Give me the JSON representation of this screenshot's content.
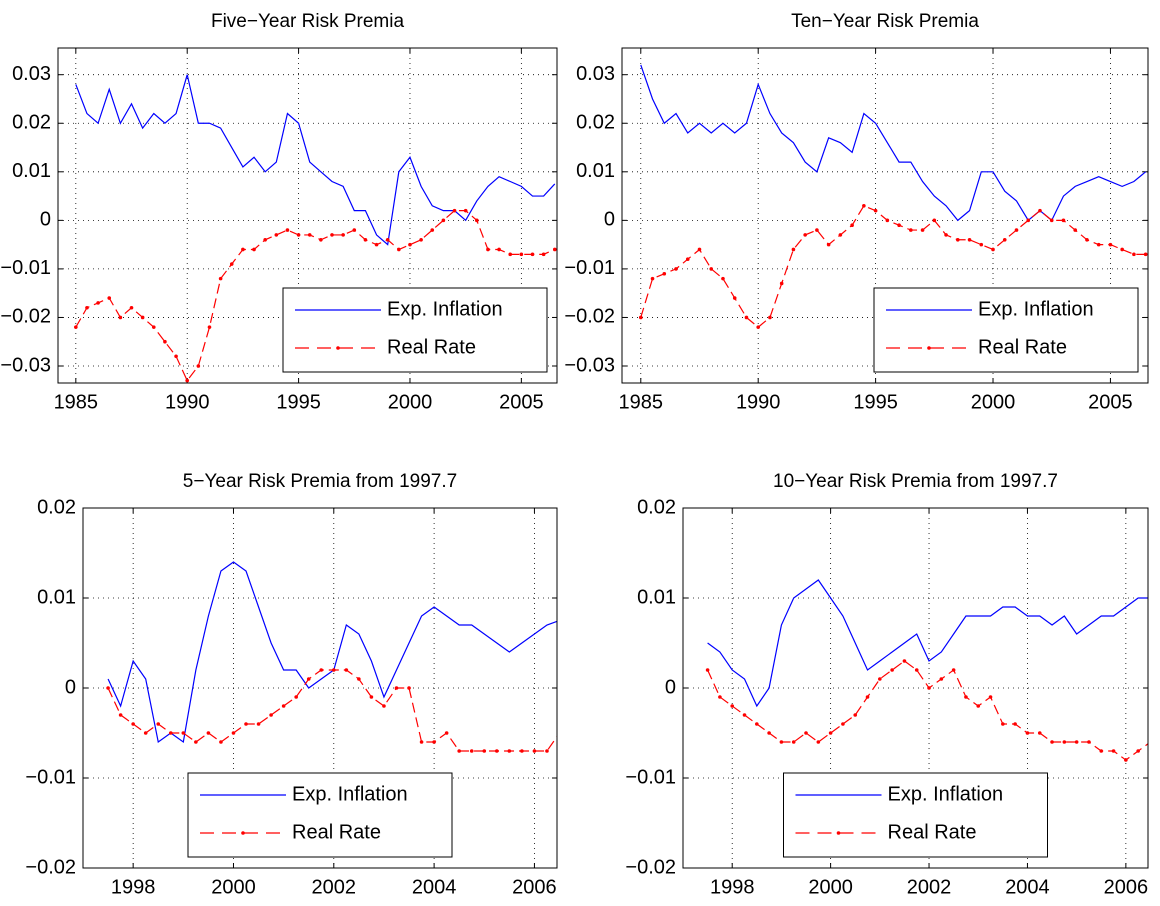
{
  "chart_data": [
    {
      "type": "line",
      "title": "Five−Year Risk Premia",
      "x": [
        1985,
        1985.5,
        1986,
        1986.5,
        1987,
        1987.5,
        1988,
        1988.5,
        1989,
        1989.5,
        1990,
        1990.5,
        1991,
        1991.5,
        1992,
        1992.5,
        1993,
        1993.5,
        1994,
        1994.5,
        1995,
        1995.5,
        1996,
        1996.5,
        1997,
        1997.5,
        1998,
        1998.5,
        1999,
        1999.5,
        2000,
        2000.5,
        2001,
        2001.5,
        2002,
        2002.5,
        2003,
        2003.5,
        2004,
        2004.5,
        2005,
        2005.5,
        2006,
        2006.5
      ],
      "series": [
        {
          "name": "Exp. Inflation",
          "color": "#0000ff",
          "linestyle": "solid",
          "marker": "none",
          "values": [
            0.028,
            0.022,
            0.02,
            0.027,
            0.02,
            0.024,
            0.019,
            0.022,
            0.02,
            0.022,
            0.03,
            0.02,
            0.02,
            0.019,
            0.015,
            0.011,
            0.013,
            0.01,
            0.012,
            0.022,
            0.02,
            0.012,
            0.01,
            0.008,
            0.007,
            0.002,
            0.002,
            -0.003,
            -0.005,
            0.01,
            0.013,
            0.007,
            0.003,
            0.002,
            0.002,
            0.0,
            0.004,
            0.007,
            0.009,
            0.008,
            0.007,
            0.005,
            0.005,
            0.0075
          ]
        },
        {
          "name": "Real Rate",
          "color": "#ff0000",
          "linestyle": "dashed",
          "marker": "dot",
          "values": [
            -0.022,
            -0.018,
            -0.017,
            -0.016,
            -0.02,
            -0.018,
            -0.02,
            -0.022,
            -0.025,
            -0.028,
            -0.033,
            -0.03,
            -0.022,
            -0.012,
            -0.009,
            -0.006,
            -0.006,
            -0.004,
            -0.003,
            -0.002,
            -0.003,
            -0.003,
            -0.004,
            -0.003,
            -0.003,
            -0.002,
            -0.004,
            -0.005,
            -0.004,
            -0.006,
            -0.005,
            -0.004,
            -0.002,
            0.0,
            0.002,
            0.002,
            0.0,
            -0.006,
            -0.006,
            -0.007,
            -0.007,
            -0.007,
            -0.007,
            -0.006
          ]
        }
      ],
      "xlim": [
        1984.2,
        2006.6
      ],
      "ylim": [
        -0.0335,
        0.0355
      ],
      "xticks": [
        1985,
        1990,
        1995,
        2000,
        2005
      ],
      "yticks": [
        {
          "value": -0.03,
          "label": "−0.03"
        },
        {
          "value": -0.02,
          "label": "−0.02"
        },
        {
          "value": -0.01,
          "label": "−0.01"
        },
        0,
        0.01,
        0.02,
        0.03
      ],
      "grid": true,
      "legend": "lower right"
    },
    {
      "type": "line",
      "title": "Ten−Year Risk Premia",
      "x": [
        1985,
        1985.5,
        1986,
        1986.5,
        1987,
        1987.5,
        1988,
        1988.5,
        1989,
        1989.5,
        1990,
        1990.5,
        1991,
        1991.5,
        1992,
        1992.5,
        1993,
        1993.5,
        1994,
        1994.5,
        1995,
        1995.5,
        1996,
        1996.5,
        1997,
        1997.5,
        1998,
        1998.5,
        1999,
        1999.5,
        2000,
        2000.5,
        2001,
        2001.5,
        2002,
        2002.5,
        2003,
        2003.5,
        2004,
        2004.5,
        2005,
        2005.5,
        2006,
        2006.5
      ],
      "series": [
        {
          "name": "Exp. Inflation",
          "color": "#0000ff",
          "linestyle": "solid",
          "marker": "none",
          "values": [
            0.032,
            0.025,
            0.02,
            0.022,
            0.018,
            0.02,
            0.018,
            0.02,
            0.018,
            0.02,
            0.028,
            0.022,
            0.018,
            0.016,
            0.012,
            0.01,
            0.017,
            0.016,
            0.014,
            0.022,
            0.02,
            0.016,
            0.012,
            0.012,
            0.008,
            0.005,
            0.003,
            0.0,
            0.002,
            0.01,
            0.01,
            0.006,
            0.004,
            0.0,
            0.002,
            0.0,
            0.005,
            0.007,
            0.008,
            0.009,
            0.008,
            0.007,
            0.008,
            0.01
          ]
        },
        {
          "name": "Real Rate",
          "color": "#ff0000",
          "linestyle": "dashed",
          "marker": "dot",
          "values": [
            -0.02,
            -0.012,
            -0.011,
            -0.01,
            -0.008,
            -0.006,
            -0.01,
            -0.012,
            -0.016,
            -0.02,
            -0.022,
            -0.02,
            -0.013,
            -0.006,
            -0.003,
            -0.002,
            -0.005,
            -0.003,
            -0.001,
            0.003,
            0.002,
            0.0,
            -0.001,
            -0.002,
            -0.002,
            0.0,
            -0.003,
            -0.004,
            -0.004,
            -0.005,
            -0.006,
            -0.004,
            -0.002,
            0.0,
            0.002,
            0.0,
            0.0,
            -0.002,
            -0.004,
            -0.005,
            -0.005,
            -0.006,
            -0.007,
            -0.007
          ]
        }
      ],
      "xlim": [
        1984.2,
        2006.6
      ],
      "ylim": [
        -0.0335,
        0.0355
      ],
      "xticks": [
        1985,
        1990,
        1995,
        2000,
        2005
      ],
      "yticks": [
        {
          "value": -0.03,
          "label": "−0.03"
        },
        {
          "value": -0.02,
          "label": "−0.02"
        },
        {
          "value": -0.01,
          "label": "−0.01"
        },
        0,
        0.01,
        0.02,
        0.03
      ],
      "grid": true,
      "legend": "lower right"
    },
    {
      "type": "line",
      "title": "5−Year Risk Premia from 1997.7",
      "x": [
        1997.5,
        1997.75,
        1998,
        1998.25,
        1998.5,
        1998.75,
        1999,
        1999.25,
        1999.5,
        1999.75,
        2000,
        2000.25,
        2000.5,
        2000.75,
        2001,
        2001.25,
        2001.5,
        2001.75,
        2002,
        2002.25,
        2002.5,
        2002.75,
        2003,
        2003.25,
        2003.5,
        2003.75,
        2004,
        2004.25,
        2004.5,
        2004.75,
        2005,
        2005.25,
        2005.5,
        2005.75,
        2006,
        2006.25,
        2006.5
      ],
      "series": [
        {
          "name": "Exp. Inflation",
          "color": "#0000ff",
          "linestyle": "solid",
          "marker": "none",
          "values": [
            0.001,
            -0.002,
            0.003,
            0.001,
            -0.006,
            -0.005,
            -0.006,
            0.002,
            0.008,
            0.013,
            0.014,
            0.013,
            0.009,
            0.005,
            0.002,
            0.002,
            0.0,
            0.001,
            0.002,
            0.007,
            0.006,
            0.003,
            -0.001,
            0.002,
            0.005,
            0.008,
            0.009,
            0.008,
            0.007,
            0.007,
            0.006,
            0.005,
            0.004,
            0.005,
            0.006,
            0.007,
            0.0075
          ]
        },
        {
          "name": "Real Rate",
          "color": "#ff0000",
          "linestyle": "dashed",
          "marker": "dot",
          "values": [
            0.0,
            -0.003,
            -0.004,
            -0.005,
            -0.004,
            -0.005,
            -0.005,
            -0.006,
            -0.005,
            -0.006,
            -0.005,
            -0.004,
            -0.004,
            -0.003,
            -0.002,
            -0.001,
            0.001,
            0.002,
            0.002,
            0.002,
            0.001,
            -0.001,
            -0.002,
            0.0,
            0.0,
            -0.006,
            -0.006,
            -0.005,
            -0.007,
            -0.007,
            -0.007,
            -0.007,
            -0.007,
            -0.007,
            -0.007,
            -0.007,
            -0.005
          ]
        }
      ],
      "xlim": [
        1997.0,
        2006.45
      ],
      "ylim": [
        -0.02,
        0.02
      ],
      "xticks": [
        1998,
        2000,
        2002,
        2004,
        2006
      ],
      "yticks": [
        {
          "value": -0.02,
          "label": "−0.02"
        },
        {
          "value": -0.01,
          "label": "−0.01"
        },
        0,
        0.01,
        0.02
      ],
      "grid": true,
      "legend": "lower center"
    },
    {
      "type": "line",
      "title": "10−Year Risk Premia from 1997.7",
      "x": [
        1997.5,
        1997.75,
        1998,
        1998.25,
        1998.5,
        1998.75,
        1999,
        1999.25,
        1999.5,
        1999.75,
        2000,
        2000.25,
        2000.5,
        2000.75,
        2001,
        2001.25,
        2001.5,
        2001.75,
        2002,
        2002.25,
        2002.5,
        2002.75,
        2003,
        2003.25,
        2003.5,
        2003.75,
        2004,
        2004.25,
        2004.5,
        2004.75,
        2005,
        2005.25,
        2005.5,
        2005.75,
        2006,
        2006.25,
        2006.5
      ],
      "series": [
        {
          "name": "Exp. Inflation",
          "color": "#0000ff",
          "linestyle": "solid",
          "marker": "none",
          "values": [
            0.005,
            0.004,
            0.002,
            0.001,
            -0.002,
            0.0,
            0.007,
            0.01,
            0.011,
            0.012,
            0.01,
            0.008,
            0.005,
            0.002,
            0.003,
            0.004,
            0.005,
            0.006,
            0.003,
            0.004,
            0.006,
            0.008,
            0.008,
            0.008,
            0.009,
            0.009,
            0.008,
            0.008,
            0.007,
            0.008,
            0.006,
            0.007,
            0.008,
            0.008,
            0.009,
            0.01,
            0.01
          ]
        },
        {
          "name": "Real Rate",
          "color": "#ff0000",
          "linestyle": "dashed",
          "marker": "dot",
          "values": [
            0.002,
            -0.001,
            -0.002,
            -0.003,
            -0.004,
            -0.005,
            -0.006,
            -0.006,
            -0.005,
            -0.006,
            -0.005,
            -0.004,
            -0.003,
            -0.001,
            0.001,
            0.002,
            0.003,
            0.002,
            0.0,
            0.001,
            0.002,
            -0.001,
            -0.002,
            -0.001,
            -0.004,
            -0.004,
            -0.005,
            -0.005,
            -0.006,
            -0.006,
            -0.006,
            -0.006,
            -0.007,
            -0.007,
            -0.008,
            -0.007,
            -0.006
          ]
        }
      ],
      "xlim": [
        1997.0,
        2006.45
      ],
      "ylim": [
        -0.02,
        0.02
      ],
      "xticks": [
        1998,
        2000,
        2002,
        2004,
        2006
      ],
      "yticks": [
        {
          "value": -0.02,
          "label": "−0.02"
        },
        {
          "value": -0.01,
          "label": "−0.01"
        },
        0,
        0.01,
        0.02
      ],
      "grid": true,
      "legend": "lower center"
    }
  ]
}
